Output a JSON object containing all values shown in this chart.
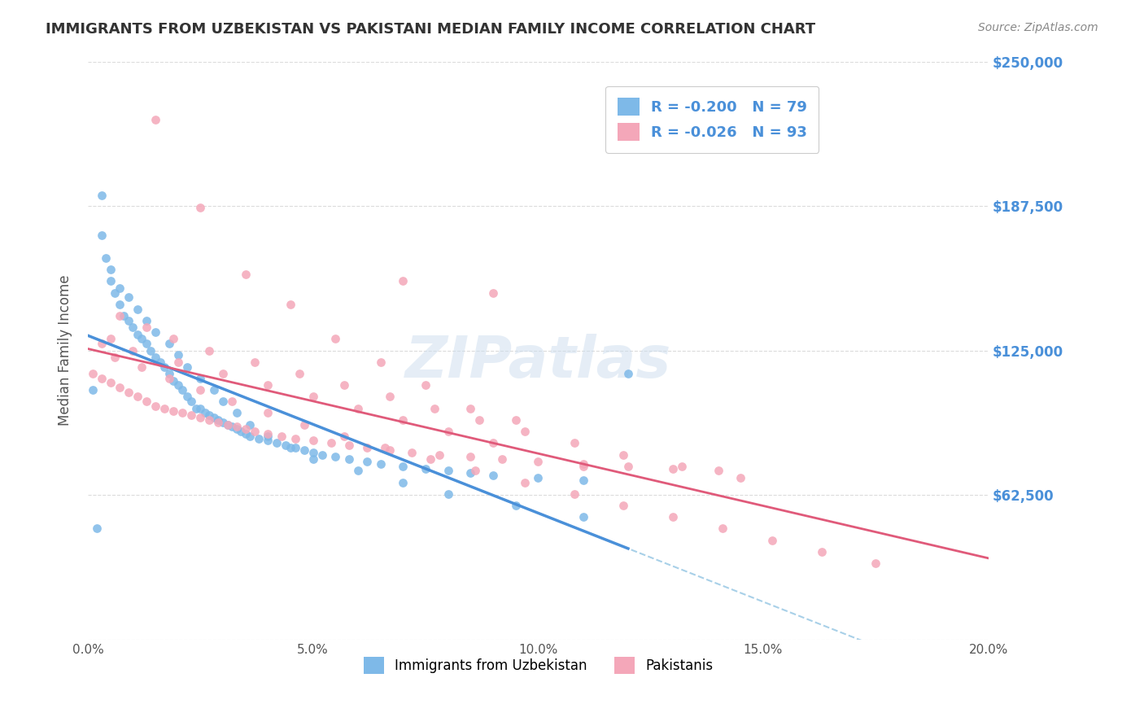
{
  "title": "IMMIGRANTS FROM UZBEKISTAN VS PAKISTANI MEDIAN FAMILY INCOME CORRELATION CHART",
  "source": "Source: ZipAtlas.com",
  "xlabel": "",
  "ylabel": "Median Family Income",
  "xlim": [
    0.0,
    0.2
  ],
  "ylim": [
    0,
    250000
  ],
  "yticks": [
    0,
    62500,
    125000,
    187500,
    250000
  ],
  "ytick_labels": [
    "",
    "$62,500",
    "$125,000",
    "$187,500",
    "$250,000"
  ],
  "xticks": [
    0.0,
    0.05,
    0.1,
    0.15,
    0.2
  ],
  "xtick_labels": [
    "0.0%",
    "5.0%",
    "10.0%",
    "15.0%",
    "20.0%"
  ],
  "legend_label1": "Immigrants from Uzbekistan",
  "legend_label2": "Pakistanis",
  "R1": "-0.200",
  "N1": "79",
  "R2": "-0.026",
  "N2": "93",
  "color_uzb": "#7EB9E8",
  "color_pak": "#F4A7B9",
  "color_uzb_line": "#4A90D9",
  "color_pak_line": "#E05A7A",
  "color_dashed": "#A8D0E8",
  "background_color": "#FFFFFF",
  "grid_color": "#CCCCCC",
  "axis_label_color": "#4A90D9",
  "title_color": "#333333",
  "watermark": "ZIPatlas",
  "uzb_x": [
    0.001,
    0.003,
    0.004,
    0.005,
    0.006,
    0.007,
    0.008,
    0.009,
    0.01,
    0.011,
    0.012,
    0.013,
    0.014,
    0.015,
    0.016,
    0.017,
    0.018,
    0.019,
    0.02,
    0.021,
    0.022,
    0.023,
    0.024,
    0.025,
    0.026,
    0.027,
    0.028,
    0.029,
    0.03,
    0.031,
    0.032,
    0.033,
    0.034,
    0.035,
    0.036,
    0.038,
    0.04,
    0.042,
    0.044,
    0.046,
    0.048,
    0.05,
    0.052,
    0.055,
    0.058,
    0.062,
    0.065,
    0.07,
    0.075,
    0.08,
    0.085,
    0.09,
    0.1,
    0.11,
    0.12,
    0.003,
    0.005,
    0.007,
    0.009,
    0.011,
    0.013,
    0.015,
    0.018,
    0.02,
    0.022,
    0.025,
    0.028,
    0.03,
    0.033,
    0.036,
    0.04,
    0.045,
    0.05,
    0.06,
    0.07,
    0.08,
    0.095,
    0.11,
    0.002
  ],
  "uzb_y": [
    108000,
    175000,
    165000,
    155000,
    150000,
    145000,
    140000,
    138000,
    135000,
    132000,
    130000,
    128000,
    125000,
    122000,
    120000,
    118000,
    115000,
    112000,
    110000,
    108000,
    105000,
    103000,
    100000,
    100000,
    98000,
    97000,
    96000,
    95000,
    94000,
    93000,
    92000,
    91000,
    90000,
    89000,
    88000,
    87000,
    86000,
    85000,
    84000,
    83000,
    82000,
    81000,
    80000,
    79000,
    78000,
    77000,
    76000,
    75000,
    74000,
    73000,
    72000,
    71000,
    70000,
    69000,
    115000,
    192000,
    160000,
    152000,
    148000,
    143000,
    138000,
    133000,
    128000,
    123000,
    118000,
    113000,
    108000,
    103000,
    98000,
    93000,
    88000,
    83000,
    78000,
    73000,
    68000,
    63000,
    58000,
    53000,
    48000
  ],
  "pak_x": [
    0.001,
    0.003,
    0.005,
    0.007,
    0.009,
    0.011,
    0.013,
    0.015,
    0.017,
    0.019,
    0.021,
    0.023,
    0.025,
    0.027,
    0.029,
    0.031,
    0.033,
    0.035,
    0.037,
    0.04,
    0.043,
    0.046,
    0.05,
    0.054,
    0.058,
    0.062,
    0.067,
    0.072,
    0.078,
    0.085,
    0.092,
    0.1,
    0.11,
    0.12,
    0.13,
    0.14,
    0.015,
    0.025,
    0.035,
    0.045,
    0.055,
    0.065,
    0.075,
    0.085,
    0.095,
    0.005,
    0.01,
    0.02,
    0.03,
    0.04,
    0.05,
    0.06,
    0.07,
    0.08,
    0.09,
    0.11,
    0.007,
    0.013,
    0.019,
    0.027,
    0.037,
    0.047,
    0.057,
    0.067,
    0.077,
    0.087,
    0.097,
    0.108,
    0.119,
    0.132,
    0.145,
    0.003,
    0.006,
    0.012,
    0.018,
    0.025,
    0.032,
    0.04,
    0.048,
    0.057,
    0.066,
    0.076,
    0.086,
    0.097,
    0.108,
    0.119,
    0.13,
    0.141,
    0.152,
    0.163,
    0.175,
    0.07,
    0.09
  ],
  "pak_y": [
    115000,
    113000,
    111000,
    109000,
    107000,
    105000,
    103000,
    101000,
    100000,
    99000,
    98000,
    97000,
    96000,
    95000,
    94000,
    93000,
    92000,
    91000,
    90000,
    89000,
    88000,
    87000,
    86000,
    85000,
    84000,
    83000,
    82000,
    81000,
    80000,
    79000,
    78000,
    77000,
    76000,
    75000,
    74000,
    73000,
    225000,
    187000,
    158000,
    145000,
    130000,
    120000,
    110000,
    100000,
    95000,
    130000,
    125000,
    120000,
    115000,
    110000,
    105000,
    100000,
    95000,
    90000,
    85000,
    75000,
    140000,
    135000,
    130000,
    125000,
    120000,
    115000,
    110000,
    105000,
    100000,
    95000,
    90000,
    85000,
    80000,
    75000,
    70000,
    128000,
    122000,
    118000,
    113000,
    108000,
    103000,
    98000,
    93000,
    88000,
    83000,
    78000,
    73000,
    68000,
    63000,
    58000,
    53000,
    48000,
    43000,
    38000,
    33000,
    155000,
    150000
  ]
}
